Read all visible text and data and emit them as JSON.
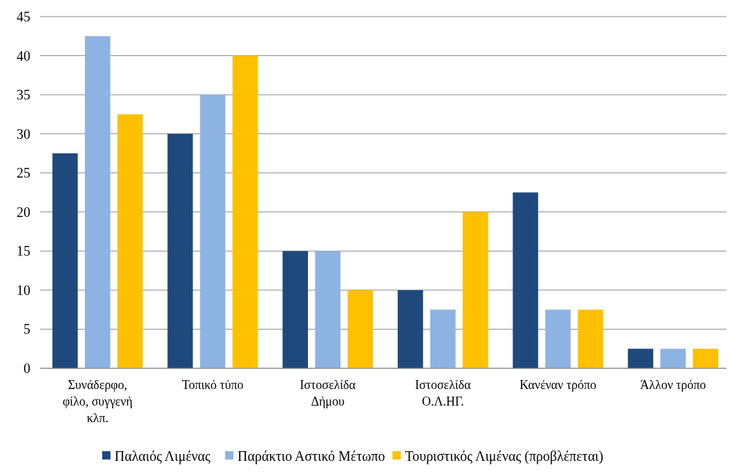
{
  "chart_data": {
    "type": "bar",
    "categories": [
      "Συνάδερφο, φίλο, συγγενή κλπ.",
      "Τοπικό τύπο",
      "Ιστοσελίδα Δήμου",
      "Ιστοσελίδα Ο.Λ.ΗΓ.",
      "Κανέναν τρόπο",
      "Άλλον τρόπο"
    ],
    "series": [
      {
        "name": "Παλαιός Λιμένας",
        "color": "#1f497d",
        "values": [
          27.5,
          30,
          15,
          10,
          22.5,
          2.5
        ]
      },
      {
        "name": "Παράκτιο Αστικό Μέτωπο",
        "color": "#8db3e2",
        "values": [
          42.5,
          35,
          15,
          7.5,
          7.5,
          2.5
        ]
      },
      {
        "name": "Τουριστικός Λιμένας (προβλέπεται)",
        "color": "#ffc000",
        "values": [
          32.5,
          40,
          10,
          20,
          7.5,
          2.5
        ]
      }
    ],
    "ylim": [
      0,
      45
    ],
    "yticks": [
      0,
      5,
      10,
      15,
      20,
      25,
      30,
      35,
      40,
      45
    ],
    "grid": "y",
    "legend": "bottom"
  }
}
